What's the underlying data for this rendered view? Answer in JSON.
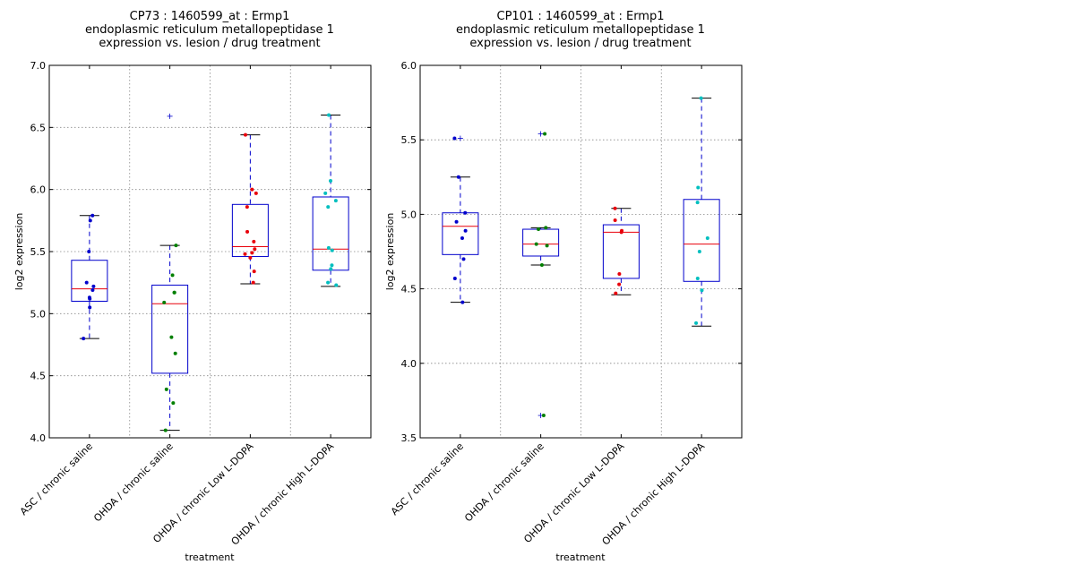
{
  "chart_data": [
    {
      "type": "box",
      "title_lines": [
        "CP73 : 1460599_at : Ermp1",
        "endoplasmic reticulum metallopeptidase 1",
        "expression vs. lesion / drug treatment"
      ],
      "xlabel": "treatment",
      "ylabel": "log2 expression",
      "ylim": [
        4.0,
        7.0
      ],
      "yticks": [
        "4.0",
        "4.5",
        "5.0",
        "5.5",
        "6.0",
        "6.5",
        "7.0"
      ],
      "grid": true,
      "categories": [
        "ASC / chronic saline",
        "OHDA / chronic saline",
        "OHDA / chronic Low L-DOPA",
        "OHDA / chronic High L-DOPA"
      ],
      "groups": [
        {
          "color": "#0000cc",
          "box": {
            "whisker_low": 4.8,
            "q1": 5.1,
            "median": 5.2,
            "q3": 5.43,
            "whisker_high": 5.79
          },
          "points": [
            5.79,
            5.75,
            5.5,
            5.25,
            5.22,
            5.19,
            5.13,
            5.12,
            5.05,
            4.8
          ],
          "fliers": []
        },
        {
          "color": "#007f00",
          "box": {
            "whisker_low": 4.06,
            "q1": 4.52,
            "median": 5.08,
            "q3": 5.23,
            "whisker_high": 5.55
          },
          "points": [
            5.55,
            5.31,
            5.17,
            5.17,
            5.09,
            4.81,
            4.68,
            4.39,
            4.28,
            4.06
          ],
          "fliers": [
            6.59
          ]
        },
        {
          "color": "#e8000b",
          "box": {
            "whisker_low": 5.24,
            "q1": 5.46,
            "median": 5.54,
            "q3": 5.88,
            "whisker_high": 6.44
          },
          "points": [
            6.44,
            6.0,
            5.97,
            5.86,
            5.66,
            5.58,
            5.52,
            5.49,
            5.48,
            5.45,
            5.34,
            5.25
          ],
          "fliers": []
        },
        {
          "color": "#00bfbf",
          "box": {
            "whisker_low": 5.22,
            "q1": 5.35,
            "median": 5.52,
            "q3": 5.94,
            "whisker_high": 6.6
          },
          "points": [
            6.6,
            6.07,
            5.97,
            5.91,
            5.86,
            5.53,
            5.51,
            5.39,
            5.36,
            5.25,
            5.23
          ],
          "fliers": []
        }
      ]
    },
    {
      "type": "box",
      "title_lines": [
        "CP101 : 1460599_at : Ermp1",
        "endoplasmic reticulum metallopeptidase 1",
        "expression vs. lesion / drug treatment"
      ],
      "xlabel": "treatment",
      "ylabel": "log2 expression",
      "ylim": [
        3.5,
        6.0
      ],
      "yticks": [
        "3.5",
        "4.0",
        "4.5",
        "5.0",
        "5.5",
        "6.0"
      ],
      "grid": true,
      "categories": [
        "ASC / chronic saline",
        "OHDA / chronic saline",
        "OHDA / chronic Low L-DOPA",
        "OHDA / chronic High L-DOPA"
      ],
      "groups": [
        {
          "color": "#0000cc",
          "box": {
            "whisker_low": 4.41,
            "q1": 4.73,
            "median": 4.92,
            "q3": 5.01,
            "whisker_high": 5.25
          },
          "points": [
            5.51,
            5.25,
            5.01,
            4.95,
            4.89,
            4.84,
            4.7,
            4.57,
            4.41
          ],
          "fliers": [
            5.51
          ]
        },
        {
          "color": "#007f00",
          "box": {
            "whisker_low": 4.66,
            "q1": 4.72,
            "median": 4.8,
            "q3": 4.9,
            "whisker_high": 4.91
          },
          "points": [
            5.54,
            4.91,
            4.9,
            4.8,
            4.79,
            4.66,
            3.65
          ],
          "fliers": [
            5.54,
            3.65
          ]
        },
        {
          "color": "#e8000b",
          "box": {
            "whisker_low": 4.46,
            "q1": 4.57,
            "median": 4.88,
            "q3": 4.93,
            "whisker_high": 5.04
          },
          "points": [
            5.04,
            4.96,
            4.89,
            4.88,
            4.6,
            4.53,
            4.47
          ],
          "fliers": []
        },
        {
          "color": "#00bfbf",
          "box": {
            "whisker_low": 4.25,
            "q1": 4.55,
            "median": 4.8,
            "q3": 5.1,
            "whisker_high": 5.78
          },
          "points": [
            5.78,
            5.18,
            5.08,
            4.84,
            4.75,
            4.57,
            4.49,
            4.27
          ],
          "fliers": []
        }
      ]
    }
  ]
}
